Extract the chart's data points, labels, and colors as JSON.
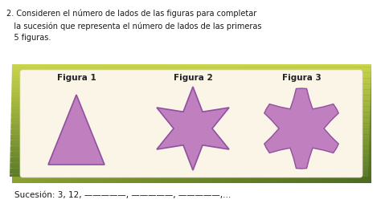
{
  "title_line1": "2. Consideren el número de lados de las figuras para completar",
  "title_line2": "   la sucesión que representa el número de lados de las primeras",
  "title_line3": "   5 figuras.",
  "fig_labels": [
    "Figura 1",
    "Figura 2",
    "Figura 3"
  ],
  "sucesion_text": "Sucesión: 3, 12, —————, —————, —————,...",
  "bg_outer_left": "#c8d44a",
  "bg_outer_right": "#5a7a28",
  "bg_inner": "#faf5e6",
  "shape_fill": "#c080c0",
  "shape_edge": "#9050a0",
  "text_color": "#1a1a1a",
  "label_color": "#222222",
  "label_fontsize": 7.5,
  "text_fontsize": 7.0,
  "sucesion_fontsize": 7.5
}
